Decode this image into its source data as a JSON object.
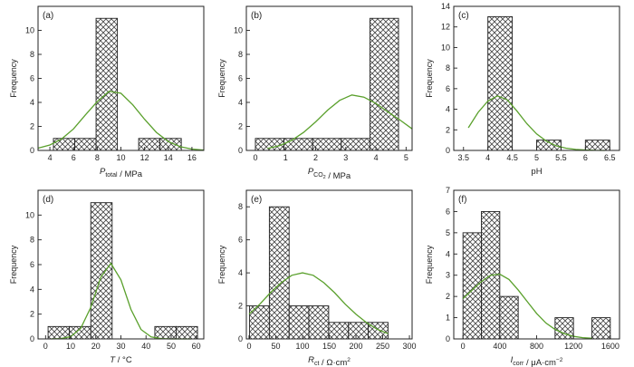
{
  "chart_data": [
    {
      "type": "bar",
      "panel_label": "(a)",
      "ylabel": "Frequency",
      "xlabel": {
        "main": "P",
        "sub": "total",
        "post": " / MPa"
      },
      "xlim": [
        3,
        17
      ],
      "ylim": [
        0,
        12
      ],
      "xticks": [
        4,
        6,
        8,
        10,
        12,
        14,
        16
      ],
      "yticks": [
        0,
        2,
        4,
        6,
        8,
        10
      ],
      "bars": [
        {
          "x0": 4.3,
          "x1": 6.1,
          "value": 1
        },
        {
          "x0": 6.1,
          "x1": 7.9,
          "value": 1
        },
        {
          "x0": 7.9,
          "x1": 9.7,
          "value": 11
        },
        {
          "x0": 11.5,
          "x1": 13.3,
          "value": 1
        },
        {
          "x0": 13.3,
          "x1": 15.1,
          "value": 1
        }
      ],
      "fit": {
        "x": [
          3.0,
          4.0,
          5.0,
          6.0,
          7.0,
          8.0,
          9.0,
          10.0,
          11.0,
          12.0,
          13.0,
          14.0,
          15.0,
          16.0,
          17.0
        ],
        "y": [
          0.19,
          0.45,
          0.96,
          1.8,
          2.96,
          4.07,
          4.93,
          4.76,
          3.8,
          2.6,
          1.5,
          0.74,
          0.31,
          0.11,
          0.03
        ]
      }
    },
    {
      "type": "bar",
      "panel_label": "(b)",
      "ylabel": "Frequency",
      "xlabel": {
        "main": "P",
        "sub": "CO",
        "sub2": "2",
        "post": " / MPa"
      },
      "xlim": [
        -0.3,
        5.2
      ],
      "ylim": [
        0,
        12
      ],
      "xticks": [
        0,
        1,
        2,
        3,
        4,
        5
      ],
      "yticks": [
        0,
        2,
        4,
        6,
        8,
        10
      ],
      "bars": [
        {
          "x0": 0.0,
          "x1": 0.95,
          "value": 1
        },
        {
          "x0": 0.95,
          "x1": 1.9,
          "value": 1
        },
        {
          "x0": 1.9,
          "x1": 2.85,
          "value": 1
        },
        {
          "x0": 2.85,
          "x1": 3.8,
          "value": 1
        },
        {
          "x0": 3.8,
          "x1": 4.75,
          "value": 11
        }
      ],
      "fit": {
        "x": [
          0.4,
          0.8,
          1.2,
          1.6,
          2.0,
          2.4,
          2.8,
          3.2,
          3.6,
          4.0,
          4.4,
          4.8,
          5.2
        ],
        "y": [
          0.16,
          0.4,
          0.83,
          1.5,
          2.38,
          3.36,
          4.17,
          4.62,
          4.44,
          3.91,
          3.2,
          2.53,
          1.8
        ]
      }
    },
    {
      "type": "bar",
      "panel_label": "(c)",
      "ylabel": "Frequency",
      "xlabel": {
        "main": "pH"
      },
      "xlim": [
        3.3,
        6.7
      ],
      "ylim": [
        0,
        14
      ],
      "xticks": [
        3.5,
        4.0,
        4.5,
        5.0,
        5.5,
        6.0,
        6.5
      ],
      "yticks": [
        0,
        2,
        4,
        6,
        8,
        10,
        12,
        14
      ],
      "bars": [
        {
          "x0": 4.0,
          "x1": 4.5,
          "value": 13
        },
        {
          "x0": 5.0,
          "x1": 5.5,
          "value": 1
        },
        {
          "x0": 6.0,
          "x1": 6.5,
          "value": 1
        }
      ],
      "fit": {
        "x": [
          3.6,
          3.8,
          4.0,
          4.2,
          4.4,
          4.6,
          4.8,
          5.0,
          5.2,
          5.4,
          5.6,
          5.8,
          6.0,
          6.2,
          6.4
        ],
        "y": [
          2.2,
          3.7,
          4.8,
          5.3,
          4.9,
          3.8,
          2.6,
          1.6,
          0.9,
          0.45,
          0.22,
          0.1,
          0.04,
          0.01,
          0.0
        ]
      }
    },
    {
      "type": "bar",
      "panel_label": "(d)",
      "ylabel": "Frequency",
      "xlabel": {
        "main": "T",
        "post": " / °C"
      },
      "xlim": [
        -3,
        63
      ],
      "ylim": [
        0,
        12
      ],
      "xticks": [
        0,
        10,
        20,
        30,
        40,
        50,
        60
      ],
      "yticks": [
        0,
        2,
        4,
        6,
        8,
        10
      ],
      "bars": [
        {
          "x0": 1,
          "x1": 9.5,
          "value": 1
        },
        {
          "x0": 9.5,
          "x1": 18,
          "value": 1
        },
        {
          "x0": 18,
          "x1": 26.5,
          "value": 11
        },
        {
          "x0": 43.5,
          "x1": 52,
          "value": 1
        },
        {
          "x0": 52,
          "x1": 60.5,
          "value": 1
        }
      ],
      "fit": {
        "x": [
          2,
          6,
          10,
          14,
          18,
          22,
          26,
          30,
          34,
          38,
          42,
          46,
          50,
          54,
          58
        ],
        "y": [
          0.0,
          0.03,
          0.18,
          0.85,
          2.54,
          4.98,
          6.1,
          4.77,
          2.38,
          0.76,
          0.16,
          0.02,
          0.0,
          0.0,
          0.0
        ]
      }
    },
    {
      "type": "bar",
      "panel_label": "(e)",
      "ylabel": "Frequency",
      "xlabel": {
        "main": "R",
        "sub": "ct",
        "post": " / Ω·cm",
        "sup": "2"
      },
      "xlim": [
        -5,
        305
      ],
      "ylim": [
        0,
        9
      ],
      "xticks": [
        0,
        50,
        100,
        150,
        200,
        250,
        300
      ],
      "yticks": [
        0,
        2,
        4,
        6,
        8
      ],
      "bars": [
        {
          "x0": 1,
          "x1": 38,
          "value": 2
        },
        {
          "x0": 38,
          "x1": 75,
          "value": 8
        },
        {
          "x0": 75,
          "x1": 112,
          "value": 2
        },
        {
          "x0": 112,
          "x1": 149,
          "value": 2
        },
        {
          "x0": 149,
          "x1": 186,
          "value": 1
        },
        {
          "x0": 186,
          "x1": 223,
          "value": 1
        },
        {
          "x0": 223,
          "x1": 260,
          "value": 1
        }
      ],
      "fit": {
        "x": [
          0,
          20,
          40,
          60,
          80,
          100,
          120,
          140,
          160,
          180,
          200,
          220,
          240,
          260
        ],
        "y": [
          1.5,
          2.1,
          2.8,
          3.4,
          3.85,
          4.0,
          3.85,
          3.4,
          2.8,
          2.1,
          1.5,
          0.98,
          0.58,
          0.32
        ]
      }
    },
    {
      "type": "bar",
      "panel_label": "(f)",
      "ylabel": "Frequency",
      "xlabel": {
        "main": "I",
        "sub": "corr",
        "post": " / μA·cm",
        "sup": "−2"
      },
      "xlim": [
        -100,
        1700
      ],
      "ylim": [
        0,
        7
      ],
      "xticks": [
        0,
        400,
        800,
        1200,
        1600
      ],
      "yticks": [
        0,
        1,
        2,
        3,
        4,
        5,
        6,
        7
      ],
      "bars": [
        {
          "x0": 0,
          "x1": 200,
          "value": 5
        },
        {
          "x0": 200,
          "x1": 400,
          "value": 6
        },
        {
          "x0": 400,
          "x1": 600,
          "value": 2
        },
        {
          "x0": 1000,
          "x1": 1200,
          "value": 1
        },
        {
          "x0": 1400,
          "x1": 1600,
          "value": 1
        }
      ],
      "fit": {
        "x": [
          0,
          100,
          200,
          300,
          400,
          500,
          600,
          700,
          800,
          900,
          1000,
          1100,
          1200,
          1300,
          1400
        ],
        "y": [
          1.9,
          2.3,
          2.7,
          3.0,
          3.05,
          2.8,
          2.3,
          1.75,
          1.2,
          0.75,
          0.45,
          0.25,
          0.12,
          0.06,
          0.03
        ]
      }
    }
  ],
  "colors": {
    "fit_line": "#5aa02c",
    "axes": "#222222",
    "hatch": "#444444"
  }
}
